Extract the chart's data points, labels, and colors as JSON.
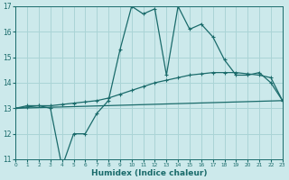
{
  "xlabel": "Humidex (Indice chaleur)",
  "bg_color": "#cce9eb",
  "grid_color": "#aad4d6",
  "line_color": "#1a6b6b",
  "x_min": 0,
  "x_max": 23,
  "y_min": 11,
  "y_max": 17,
  "jagged_x": [
    0,
    1,
    2,
    3,
    4,
    5,
    6,
    7,
    8,
    9,
    10,
    11,
    12,
    13,
    14,
    15,
    16,
    17,
    18,
    19,
    20,
    21,
    22,
    23
  ],
  "jagged_y": [
    13.0,
    13.1,
    13.1,
    13.0,
    10.7,
    12.0,
    12.0,
    12.8,
    13.3,
    15.3,
    17.0,
    16.7,
    16.9,
    14.3,
    17.0,
    16.1,
    16.3,
    15.8,
    14.9,
    14.3,
    14.3,
    14.4,
    14.0,
    13.3
  ],
  "smooth_x": [
    0,
    1,
    2,
    3,
    4,
    5,
    6,
    7,
    8,
    9,
    10,
    11,
    12,
    13,
    14,
    15,
    16,
    17,
    18,
    19,
    20,
    21,
    22,
    23
  ],
  "smooth_y": [
    13.0,
    13.05,
    13.1,
    13.1,
    13.15,
    13.2,
    13.25,
    13.3,
    13.4,
    13.55,
    13.7,
    13.85,
    14.0,
    14.1,
    14.2,
    14.3,
    14.35,
    14.4,
    14.4,
    14.4,
    14.35,
    14.3,
    14.2,
    13.3
  ],
  "trend_x": [
    0,
    23
  ],
  "trend_y": [
    13.0,
    13.3
  ]
}
